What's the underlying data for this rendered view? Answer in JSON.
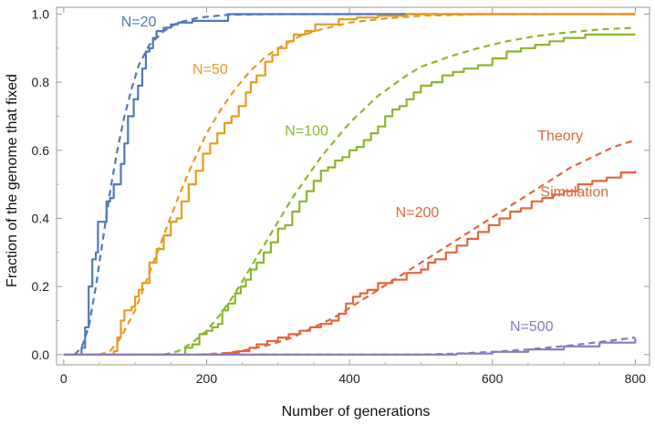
{
  "chart_data": {
    "type": "line",
    "xlabel": "Number of generations",
    "ylabel": "Fraction of the genome that fixed",
    "xlim": [
      -10,
      820
    ],
    "ylim": [
      -0.03,
      1.02
    ],
    "xticks": [
      0,
      200,
      400,
      600,
      800
    ],
    "xtick_labels": [
      "0",
      "200",
      "400",
      "600",
      "800"
    ],
    "yticks": [
      0.0,
      0.2,
      0.4,
      0.6,
      0.8,
      1.0
    ],
    "ytick_labels": [
      "0.0",
      "0.2",
      "0.4",
      "0.6",
      "0.8",
      "1.0"
    ],
    "grid": false,
    "annotations": [
      {
        "text": "Theory",
        "x": 695,
        "y": 0.645,
        "color": "#e4653c"
      },
      {
        "text": "Simulation",
        "x": 715,
        "y": 0.48,
        "color": "#e4653c"
      }
    ],
    "series": [
      {
        "name": "N=20",
        "color": "#4f79b7",
        "label_pos": {
          "x": 105,
          "y": 0.98
        },
        "theory": [
          [
            15,
            0
          ],
          [
            25,
            0.02
          ],
          [
            35,
            0.08
          ],
          [
            45,
            0.2
          ],
          [
            55,
            0.34
          ],
          [
            65,
            0.48
          ],
          [
            75,
            0.6
          ],
          [
            85,
            0.7
          ],
          [
            95,
            0.78
          ],
          [
            105,
            0.85
          ],
          [
            120,
            0.91
          ],
          [
            140,
            0.95
          ],
          [
            160,
            0.975
          ],
          [
            190,
            0.99
          ],
          [
            230,
            0.998
          ],
          [
            300,
            1
          ],
          [
            800,
            1
          ]
        ],
        "simulation": [
          [
            0,
            0
          ],
          [
            20,
            0
          ],
          [
            25,
            0.02
          ],
          [
            30,
            0.08
          ],
          [
            32,
            0.08
          ],
          [
            35,
            0.2
          ],
          [
            40,
            0.28
          ],
          [
            45,
            0.3
          ],
          [
            48,
            0.39
          ],
          [
            55,
            0.39
          ],
          [
            60,
            0.45
          ],
          [
            65,
            0.46
          ],
          [
            70,
            0.5
          ],
          [
            80,
            0.56
          ],
          [
            85,
            0.62
          ],
          [
            90,
            0.7
          ],
          [
            98,
            0.75
          ],
          [
            104,
            0.79
          ],
          [
            110,
            0.84
          ],
          [
            115,
            0.89
          ],
          [
            120,
            0.9
          ],
          [
            125,
            0.93
          ],
          [
            130,
            0.95
          ],
          [
            140,
            0.96
          ],
          [
            150,
            0.97
          ],
          [
            160,
            0.975
          ],
          [
            180,
            0.98
          ],
          [
            200,
            0.98
          ],
          [
            225,
            0.98
          ],
          [
            230,
            1.0
          ],
          [
            800,
            1.0
          ]
        ]
      },
      {
        "name": "N=50",
        "color": "#e89a1f",
        "label_pos": {
          "x": 205,
          "y": 0.84
        },
        "theory": [
          [
            50,
            0
          ],
          [
            65,
            0.01
          ],
          [
            80,
            0.05
          ],
          [
            100,
            0.13
          ],
          [
            120,
            0.24
          ],
          [
            140,
            0.35
          ],
          [
            160,
            0.46
          ],
          [
            180,
            0.56
          ],
          [
            200,
            0.65
          ],
          [
            220,
            0.72
          ],
          [
            240,
            0.78
          ],
          [
            260,
            0.83
          ],
          [
            280,
            0.87
          ],
          [
            300,
            0.9
          ],
          [
            330,
            0.935
          ],
          [
            360,
            0.955
          ],
          [
            400,
            0.975
          ],
          [
            450,
            0.987
          ],
          [
            500,
            0.995
          ],
          [
            600,
            1
          ],
          [
            800,
            1
          ]
        ],
        "simulation": [
          [
            60,
            0
          ],
          [
            70,
            0.01
          ],
          [
            75,
            0.05
          ],
          [
            80,
            0.1
          ],
          [
            85,
            0.13
          ],
          [
            95,
            0.14
          ],
          [
            100,
            0.17
          ],
          [
            105,
            0.19
          ],
          [
            110,
            0.21
          ],
          [
            120,
            0.27
          ],
          [
            130,
            0.31
          ],
          [
            140,
            0.35
          ],
          [
            150,
            0.39
          ],
          [
            158,
            0.4
          ],
          [
            165,
            0.45
          ],
          [
            175,
            0.5
          ],
          [
            185,
            0.54
          ],
          [
            195,
            0.59
          ],
          [
            205,
            0.62
          ],
          [
            215,
            0.65
          ],
          [
            225,
            0.68
          ],
          [
            235,
            0.7
          ],
          [
            245,
            0.73
          ],
          [
            255,
            0.77
          ],
          [
            262,
            0.8
          ],
          [
            270,
            0.82
          ],
          [
            282,
            0.86
          ],
          [
            292,
            0.88
          ],
          [
            300,
            0.9
          ],
          [
            312,
            0.92
          ],
          [
            322,
            0.94
          ],
          [
            338,
            0.95
          ],
          [
            352,
            0.97
          ],
          [
            368,
            0.97
          ],
          [
            385,
            0.985
          ],
          [
            410,
            0.99
          ],
          [
            440,
            0.995
          ],
          [
            480,
            1.0
          ],
          [
            800,
            1.0
          ]
        ]
      },
      {
        "name": "N=100",
        "color": "#8bb52f",
        "label_pos": {
          "x": 340,
          "y": 0.66
        },
        "theory": [
          [
            140,
            0
          ],
          [
            160,
            0.01
          ],
          [
            180,
            0.035
          ],
          [
            200,
            0.07
          ],
          [
            220,
            0.12
          ],
          [
            240,
            0.18
          ],
          [
            260,
            0.25
          ],
          [
            280,
            0.32
          ],
          [
            300,
            0.39
          ],
          [
            320,
            0.46
          ],
          [
            340,
            0.52
          ],
          [
            360,
            0.58
          ],
          [
            380,
            0.63
          ],
          [
            400,
            0.68
          ],
          [
            420,
            0.72
          ],
          [
            440,
            0.76
          ],
          [
            460,
            0.79
          ],
          [
            480,
            0.82
          ],
          [
            500,
            0.845
          ],
          [
            540,
            0.875
          ],
          [
            580,
            0.9
          ],
          [
            620,
            0.92
          ],
          [
            660,
            0.935
          ],
          [
            700,
            0.945
          ],
          [
            750,
            0.955
          ],
          [
            800,
            0.96
          ]
        ],
        "simulation": [
          [
            0,
            0
          ],
          [
            150,
            0
          ],
          [
            165,
            0.0
          ],
          [
            170,
            0.02
          ],
          [
            180,
            0.03
          ],
          [
            190,
            0.06
          ],
          [
            200,
            0.07
          ],
          [
            208,
            0.08
          ],
          [
            216,
            0.09
          ],
          [
            222,
            0.13
          ],
          [
            230,
            0.15
          ],
          [
            240,
            0.18
          ],
          [
            248,
            0.2
          ],
          [
            255,
            0.22
          ],
          [
            262,
            0.25
          ],
          [
            270,
            0.27
          ],
          [
            280,
            0.3
          ],
          [
            290,
            0.33
          ],
          [
            300,
            0.37
          ],
          [
            310,
            0.38
          ],
          [
            320,
            0.42
          ],
          [
            330,
            0.45
          ],
          [
            340,
            0.48
          ],
          [
            350,
            0.51
          ],
          [
            360,
            0.54
          ],
          [
            370,
            0.55
          ],
          [
            380,
            0.57
          ],
          [
            390,
            0.58
          ],
          [
            400,
            0.6
          ],
          [
            410,
            0.61
          ],
          [
            420,
            0.63
          ],
          [
            430,
            0.65
          ],
          [
            440,
            0.67
          ],
          [
            450,
            0.7
          ],
          [
            460,
            0.72
          ],
          [
            470,
            0.73
          ],
          [
            480,
            0.75
          ],
          [
            490,
            0.77
          ],
          [
            500,
            0.79
          ],
          [
            515,
            0.8
          ],
          [
            530,
            0.82
          ],
          [
            545,
            0.83
          ],
          [
            560,
            0.84
          ],
          [
            580,
            0.85
          ],
          [
            600,
            0.87
          ],
          [
            620,
            0.89
          ],
          [
            640,
            0.9
          ],
          [
            660,
            0.91
          ],
          [
            680,
            0.92
          ],
          [
            700,
            0.93
          ],
          [
            730,
            0.94
          ],
          [
            760,
            0.94
          ],
          [
            800,
            0.94
          ]
        ]
      },
      {
        "name": "N=200",
        "color": "#e4653c",
        "label_pos": {
          "x": 495,
          "y": 0.42
        },
        "theory": [
          [
            190,
            0
          ],
          [
            230,
            0.005
          ],
          [
            260,
            0.015
          ],
          [
            290,
            0.03
          ],
          [
            320,
            0.05
          ],
          [
            350,
            0.08
          ],
          [
            380,
            0.11
          ],
          [
            410,
            0.15
          ],
          [
            440,
            0.19
          ],
          [
            470,
            0.23
          ],
          [
            500,
            0.27
          ],
          [
            530,
            0.31
          ],
          [
            560,
            0.35
          ],
          [
            590,
            0.39
          ],
          [
            620,
            0.43
          ],
          [
            650,
            0.47
          ],
          [
            680,
            0.51
          ],
          [
            710,
            0.55
          ],
          [
            740,
            0.58
          ],
          [
            770,
            0.61
          ],
          [
            800,
            0.63
          ]
        ],
        "simulation": [
          [
            200,
            0
          ],
          [
            230,
            0.005
          ],
          [
            245,
            0.01
          ],
          [
            260,
            0.02
          ],
          [
            270,
            0.03
          ],
          [
            285,
            0.04
          ],
          [
            300,
            0.05
          ],
          [
            315,
            0.06
          ],
          [
            330,
            0.07
          ],
          [
            345,
            0.08
          ],
          [
            360,
            0.09
          ],
          [
            375,
            0.1
          ],
          [
            385,
            0.12
          ],
          [
            395,
            0.15
          ],
          [
            405,
            0.17
          ],
          [
            415,
            0.18
          ],
          [
            425,
            0.19
          ],
          [
            440,
            0.21
          ],
          [
            460,
            0.22
          ],
          [
            480,
            0.24
          ],
          [
            500,
            0.25
          ],
          [
            510,
            0.27
          ],
          [
            520,
            0.28
          ],
          [
            535,
            0.3
          ],
          [
            550,
            0.32
          ],
          [
            565,
            0.34
          ],
          [
            580,
            0.36
          ],
          [
            595,
            0.38
          ],
          [
            610,
            0.4
          ],
          [
            625,
            0.42
          ],
          [
            640,
            0.43
          ],
          [
            655,
            0.45
          ],
          [
            670,
            0.46
          ],
          [
            685,
            0.47
          ],
          [
            700,
            0.48
          ],
          [
            720,
            0.5
          ],
          [
            740,
            0.51
          ],
          [
            760,
            0.52
          ],
          [
            780,
            0.535
          ],
          [
            800,
            0.54
          ]
        ]
      },
      {
        "name": "N=500",
        "color": "#8a78c0",
        "label_pos": {
          "x": 655,
          "y": 0.085
        },
        "theory": [
          [
            0,
            0
          ],
          [
            500,
            0
          ],
          [
            550,
            0.003
          ],
          [
            600,
            0.008
          ],
          [
            650,
            0.015
          ],
          [
            700,
            0.025
          ],
          [
            750,
            0.037
          ],
          [
            800,
            0.05
          ]
        ],
        "simulation": [
          [
            0,
            0
          ],
          [
            500,
            0
          ],
          [
            550,
            0.003
          ],
          [
            600,
            0.008
          ],
          [
            650,
            0.015
          ],
          [
            700,
            0.024
          ],
          [
            750,
            0.035
          ],
          [
            800,
            0.048
          ]
        ]
      }
    ]
  }
}
